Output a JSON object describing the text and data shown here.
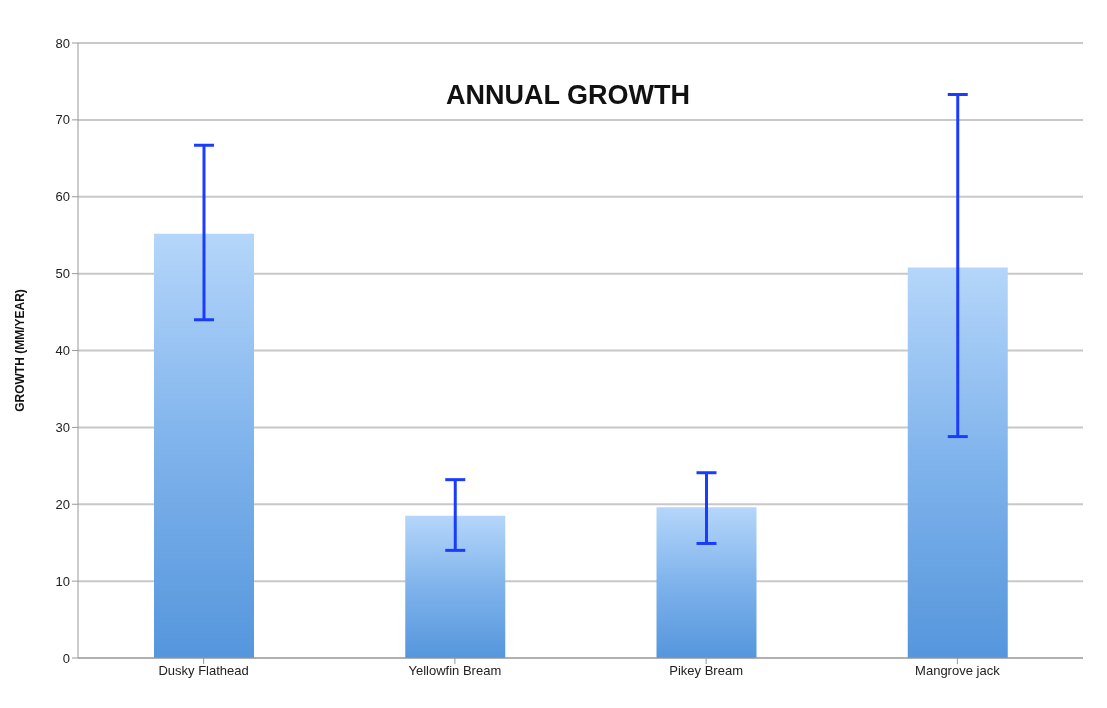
{
  "chart_data": {
    "type": "bar",
    "title": "ANNUAL GROWTH",
    "ylabel": "GROWTH (MM/YEAR)",
    "categories": [
      "Dusky Flathead",
      "Yellowfin Bream",
      "Pikey Bream",
      "Mangrove jack"
    ],
    "values": [
      55.2,
      18.5,
      19.6,
      50.8
    ],
    "errors": [
      [
        44.0,
        66.7
      ],
      [
        14.0,
        23.2
      ],
      [
        14.9,
        24.1
      ],
      [
        28.8,
        73.3
      ]
    ],
    "color": "#7fb3ec",
    "ylim": [
      0,
      80
    ],
    "yticks": [
      0,
      10,
      20,
      30,
      40,
      50,
      60,
      70,
      80
    ],
    "grid": "y",
    "legend": false
  }
}
